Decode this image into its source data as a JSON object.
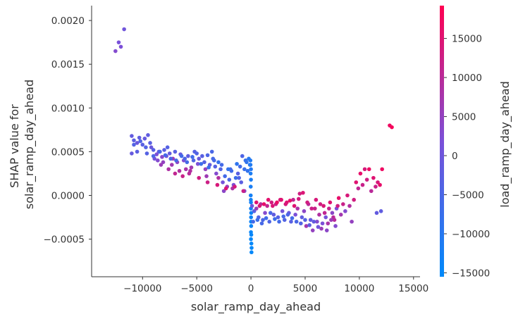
{
  "chart_data": {
    "type": "scatter",
    "xlabel": "solar_ramp_day_ahead",
    "ylabel_lines": [
      "SHAP value for",
      "solar_ramp_day_ahead"
    ],
    "xlim": [
      -14700,
      15600
    ],
    "ylim": [
      -0.00093,
      0.00217
    ],
    "xticks": [
      {
        "value": -10000,
        "label": "−10000"
      },
      {
        "value": -5000,
        "label": "−5000"
      },
      {
        "value": 0,
        "label": "0"
      },
      {
        "value": 5000,
        "label": "5000"
      },
      {
        "value": 10000,
        "label": "10000"
      },
      {
        "value": 15000,
        "label": "15000"
      }
    ],
    "yticks": [
      {
        "value": -0.0005,
        "label": "−0.0005"
      },
      {
        "value": 0.0,
        "label": "0.0000"
      },
      {
        "value": 0.0005,
        "label": "0.0005"
      },
      {
        "value": 0.001,
        "label": "0.0010"
      },
      {
        "value": 0.0015,
        "label": "0.0015"
      },
      {
        "value": 0.002,
        "label": "0.0020"
      }
    ],
    "colorbar": {
      "label": "load_ramp_day_ahead",
      "range": [
        -15500,
        19200
      ],
      "ticks": [
        {
          "value": -15000,
          "label": "−15000"
        },
        {
          "value": -10000,
          "label": "−10000"
        },
        {
          "value": -5000,
          "label": "−5000"
        },
        {
          "value": 0,
          "label": "0"
        },
        {
          "value": 5000,
          "label": "5000"
        },
        {
          "value": 10000,
          "label": "10000"
        },
        {
          "value": 15000,
          "label": "15000"
        }
      ],
      "colors": [
        "#008afb",
        "#7b50d8",
        "#ff0051"
      ]
    },
    "points": [
      [
        -12500,
        0.00165,
        3000
      ],
      [
        -12200,
        0.00175,
        1500
      ],
      [
        -12000,
        0.0017,
        2000
      ],
      [
        -11700,
        0.0019,
        500
      ],
      [
        -11000,
        0.00068,
        -1500
      ],
      [
        -10800,
        0.00063,
        -2500
      ],
      [
        -10500,
        0.0006,
        -500
      ],
      [
        -10300,
        0.00066,
        -2000
      ],
      [
        -10000,
        0.00058,
        -3000
      ],
      [
        -9800,
        0.00065,
        -1000
      ],
      [
        -9500,
        0.00069,
        -2000
      ],
      [
        -9200,
        0.00055,
        -500
      ],
      [
        -9000,
        0.00052,
        -3000
      ],
      [
        -8700,
        0.00047,
        2000
      ],
      [
        -8500,
        0.0005,
        -1000
      ],
      [
        -8200,
        0.00044,
        3500
      ],
      [
        -8000,
        0.00052,
        -2500
      ],
      [
        -7800,
        0.00045,
        1000
      ],
      [
        -7500,
        0.00048,
        -1500
      ],
      [
        -7200,
        0.00042,
        6000
      ],
      [
        -7000,
        0.0005,
        -3000
      ],
      [
        -6800,
        0.00038,
        4000
      ],
      [
        -6500,
        0.00047,
        -1000
      ],
      [
        -6200,
        0.0004,
        2500
      ],
      [
        -6000,
        0.0003,
        8000
      ],
      [
        -5800,
        0.00045,
        -2000
      ],
      [
        -5500,
        0.00032,
        7000
      ],
      [
        -5200,
        0.0005,
        -3500
      ],
      [
        -5000,
        0.00048,
        -4000
      ],
      [
        -4800,
        0.00042,
        -1000
      ],
      [
        -4500,
        0.00045,
        -3000
      ],
      [
        -4200,
        0.0003,
        5000
      ],
      [
        -4000,
        0.00046,
        -4500
      ],
      [
        -3800,
        0.00035,
        -2000
      ],
      [
        -3600,
        0.0005,
        -5000
      ],
      [
        -3400,
        0.0004,
        -5500
      ],
      [
        -3200,
        0.00025,
        3000
      ],
      [
        -3000,
        0.0002,
        9000
      ],
      [
        -2800,
        0.0003,
        -4000
      ],
      [
        -2600,
        0.00015,
        1000
      ],
      [
        -2400,
        0.00022,
        -6000
      ],
      [
        -2200,
        0.0001,
        6000
      ],
      [
        -2000,
        0.00018,
        -5000
      ],
      [
        -1800,
        0.00028,
        -6500
      ],
      [
        -1600,
        0.00012,
        2000
      ],
      [
        -1400,
        0.0002,
        -7000
      ],
      [
        -1200,
        0.00025,
        -3000
      ],
      [
        -1000,
        0.00033,
        -6000
      ],
      [
        -800,
        0.00045,
        -4500
      ],
      [
        -600,
        0.0003,
        -7500
      ],
      [
        -400,
        0.00038,
        -9000
      ],
      [
        -200,
        0.00042,
        -10000
      ],
      [
        -10500,
        0.0005,
        -2500
      ],
      [
        -9700,
        0.00055,
        -4000
      ],
      [
        -8900,
        0.00042,
        1000
      ],
      [
        -8100,
        0.00038,
        5000
      ],
      [
        -7300,
        0.00035,
        7000
      ],
      [
        -6600,
        0.00028,
        9000
      ],
      [
        -5700,
        0.00025,
        10000
      ],
      [
        -4900,
        0.00036,
        2000
      ],
      [
        -4100,
        0.00022,
        6500
      ],
      [
        -3300,
        0.00033,
        -3500
      ],
      [
        -2500,
        5e-05,
        4000
      ],
      [
        -1700,
        8e-05,
        8000
      ],
      [
        -900,
        0.00015,
        -2500
      ],
      [
        -11000,
        0.00048,
        -1000
      ],
      [
        -9300,
        0.0006,
        -2800
      ],
      [
        -7700,
        0.00055,
        -3500
      ],
      [
        -6100,
        0.00042,
        -4500
      ],
      [
        -5300,
        0.0004,
        -4000
      ],
      [
        -4300,
        0.00038,
        -3500
      ],
      [
        -3500,
        0.00042,
        -5500
      ],
      [
        -2700,
        0.00035,
        -6000
      ],
      [
        -1900,
        0.0003,
        -5500
      ],
      [
        -1100,
        0.0002,
        -4000
      ],
      [
        -600,
        5e-05,
        3000
      ],
      [
        -500,
        0.0004,
        -8000
      ],
      [
        -300,
        0.00028,
        -8500
      ],
      [
        -100,
        0.00035,
        -9500
      ],
      [
        -50,
        0.0004,
        -11000
      ],
      [
        -30,
        0.00025,
        -11500
      ],
      [
        -20,
        0.0001,
        -12000
      ],
      [
        -10,
        -5e-05,
        -12500
      ],
      [
        0,
        -0.00015,
        -13000
      ],
      [
        10,
        -0.00025,
        -13500
      ],
      [
        20,
        -0.00035,
        -14000
      ],
      [
        30,
        -0.00045,
        -14500
      ],
      [
        40,
        -0.00055,
        -15000
      ],
      [
        50,
        -0.00065,
        -15000
      ],
      [
        -40,
        0.00035,
        -11000
      ],
      [
        60,
        -0.0006,
        -14800
      ],
      [
        0,
        0.0003,
        -10500
      ],
      [
        0,
        0.00018,
        -11800
      ],
      [
        0,
        -8e-05,
        -12800
      ],
      [
        0,
        -0.00042,
        -14200
      ],
      [
        0,
        -0.0005,
        -14700
      ],
      [
        -20,
        0.0,
        -12500
      ],
      [
        20,
        -0.0002,
        -13200
      ],
      [
        10,
        -0.0003,
        -13700
      ],
      [
        100,
        -0.00012,
        500
      ],
      [
        300,
        -0.00018,
        -3000
      ],
      [
        500,
        -0.00015,
        6000
      ],
      [
        700,
        -0.00025,
        -4000
      ],
      [
        900,
        -0.0001,
        9000
      ],
      [
        1100,
        -0.00028,
        -5000
      ],
      [
        1300,
        -0.0002,
        3000
      ],
      [
        1500,
        -0.00012,
        11000
      ],
      [
        1700,
        -0.0003,
        -4500
      ],
      [
        1900,
        -8e-05,
        13000
      ],
      [
        2100,
        -0.00022,
        -2000
      ],
      [
        2300,
        -0.0001,
        12000
      ],
      [
        2500,
        -0.00025,
        -3500
      ],
      [
        2700,
        -5e-05,
        14000
      ],
      [
        2900,
        -0.00018,
        1000
      ],
      [
        3100,
        -0.00028,
        -4000
      ],
      [
        3300,
        -8e-05,
        15000
      ],
      [
        3500,
        -0.0002,
        -1000
      ],
      [
        3700,
        -0.0003,
        -3000
      ],
      [
        3900,
        -5e-05,
        11000
      ],
      [
        4100,
        -0.00022,
        2000
      ],
      [
        4300,
        -0.00015,
        8000
      ],
      [
        4500,
        2e-05,
        13000
      ],
      [
        4700,
        -0.00025,
        -2000
      ],
      [
        4900,
        -0.00018,
        4000
      ],
      [
        5100,
        -0.00035,
        7000
      ],
      [
        5300,
        -0.0001,
        10000
      ],
      [
        5500,
        -0.00028,
        -1500
      ],
      [
        5700,
        -0.0004,
        5000
      ],
      [
        5900,
        -0.00015,
        12000
      ],
      [
        6100,
        -0.0003,
        3000
      ],
      [
        6300,
        -0.00022,
        9000
      ],
      [
        6500,
        -0.00038,
        6000
      ],
      [
        6700,
        -0.00012,
        14000
      ],
      [
        6900,
        -0.00025,
        1000
      ],
      [
        7100,
        -0.00032,
        8000
      ],
      [
        7300,
        -8e-05,
        15000
      ],
      [
        7500,
        -0.0002,
        4000
      ],
      [
        7700,
        -0.00028,
        10000
      ],
      [
        7900,
        -0.00015,
        2000
      ],
      [
        8100,
        -3e-05,
        16000
      ],
      [
        8300,
        -0.00022,
        7000
      ],
      [
        8500,
        -0.0001,
        12000
      ],
      [
        8700,
        -0.00018,
        3000
      ],
      [
        8900,
        0.0,
        14000
      ],
      [
        9100,
        -0.00012,
        9000
      ],
      [
        9300,
        -0.0003,
        5000
      ],
      [
        9500,
        -5e-05,
        13000
      ],
      [
        9700,
        0.00015,
        15000
      ],
      [
        9900,
        8e-05,
        11000
      ],
      [
        10100,
        0.00025,
        16000
      ],
      [
        10300,
        0.00012,
        12000
      ],
      [
        10500,
        0.0003,
        14000
      ],
      [
        10700,
        0.00018,
        13000
      ],
      [
        10900,
        0.0003,
        17000
      ],
      [
        11100,
        5e-05,
        10000
      ],
      [
        11300,
        0.0002,
        15000
      ],
      [
        11500,
        0.0001,
        12000
      ],
      [
        11700,
        0.00015,
        14000
      ],
      [
        11900,
        0.00012,
        16000
      ],
      [
        12100,
        0.0003,
        17000
      ],
      [
        12000,
        -0.00018,
        -2000
      ],
      [
        11600,
        -0.0002,
        -1500
      ],
      [
        12800,
        0.0008,
        17000
      ],
      [
        13000,
        0.00078,
        18000
      ],
      [
        500,
        -8e-05,
        15000
      ],
      [
        800,
        -0.00012,
        14000
      ],
      [
        1200,
        -0.0001,
        16000
      ],
      [
        1600,
        -5e-05,
        15500
      ],
      [
        2000,
        -0.00012,
        14500
      ],
      [
        2400,
        -8e-05,
        16500
      ],
      [
        2800,
        -5e-05,
        15000
      ],
      [
        3200,
        -0.0001,
        14000
      ],
      [
        3600,
        -6e-05,
        16000
      ],
      [
        4000,
        -0.00012,
        15000
      ],
      [
        4400,
        -4e-05,
        13500
      ],
      [
        4800,
        3e-05,
        14500
      ],
      [
        5200,
        -8e-05,
        13000
      ],
      [
        5600,
        -0.00015,
        12500
      ],
      [
        6000,
        -5e-05,
        14000
      ],
      [
        6400,
        -0.0001,
        13000
      ],
      [
        6800,
        -0.0002,
        11000
      ],
      [
        7200,
        -0.00015,
        12000
      ],
      [
        7600,
        -0.00025,
        10000
      ],
      [
        8000,
        -0.00012,
        13000
      ],
      [
        200,
        -0.0003,
        -6000
      ],
      [
        600,
        -0.00028,
        -7000
      ],
      [
        1000,
        -0.00032,
        -5500
      ],
      [
        1400,
        -0.00026,
        -6500
      ],
      [
        1800,
        -0.0002,
        -5000
      ],
      [
        2200,
        -0.00027,
        -7000
      ],
      [
        2600,
        -0.0003,
        -6000
      ],
      [
        3000,
        -0.00024,
        -5500
      ],
      [
        3400,
        -0.00022,
        -4500
      ],
      [
        3800,
        -0.00026,
        -6000
      ],
      [
        4200,
        -0.0003,
        -5000
      ],
      [
        4600,
        -0.00032,
        -4000
      ],
      [
        5000,
        -0.00028,
        -3500
      ],
      [
        5400,
        -0.00034,
        -2500
      ],
      [
        5800,
        -0.0003,
        -1500
      ],
      [
        6200,
        -0.00036,
        500
      ],
      [
        6600,
        -0.00032,
        2000
      ],
      [
        7000,
        -0.0004,
        4000
      ],
      [
        7400,
        -0.00028,
        6000
      ],
      [
        7800,
        -0.00035,
        3000
      ],
      [
        -8600,
        0.0004,
        3000
      ],
      [
        -8300,
        0.00035,
        6000
      ],
      [
        -7600,
        0.0003,
        8500
      ],
      [
        -7000,
        0.00025,
        11000
      ],
      [
        -6300,
        0.00022,
        12000
      ],
      [
        -5600,
        0.00028,
        9000
      ],
      [
        -4800,
        0.0002,
        13000
      ],
      [
        -4000,
        0.00015,
        12500
      ],
      [
        -3100,
        0.00012,
        14000
      ],
      [
        -2300,
        8e-05,
        15000
      ],
      [
        -1500,
        0.0001,
        13500
      ],
      [
        -700,
        5e-05,
        12000
      ],
      [
        -10800,
        0.00058,
        -3800
      ],
      [
        -10200,
        0.00062,
        -4200
      ],
      [
        -9600,
        0.00048,
        -3500
      ],
      [
        -9000,
        0.00045,
        -4500
      ],
      [
        -8400,
        0.0005,
        -5000
      ],
      [
        -7900,
        0.00046,
        -5500
      ],
      [
        -7400,
        0.00042,
        -4800
      ],
      [
        -6900,
        0.0004,
        -5200
      ],
      [
        -6400,
        0.00045,
        -6000
      ],
      [
        -5900,
        0.00038,
        -5800
      ],
      [
        -5400,
        0.00044,
        -6500
      ],
      [
        -4600,
        0.00036,
        -7000
      ],
      [
        -3900,
        0.00032,
        -7500
      ],
      [
        -3000,
        0.00038,
        -8000
      ],
      [
        -2100,
        0.0003,
        -8500
      ],
      [
        -1300,
        0.00036,
        -9000
      ]
    ]
  }
}
